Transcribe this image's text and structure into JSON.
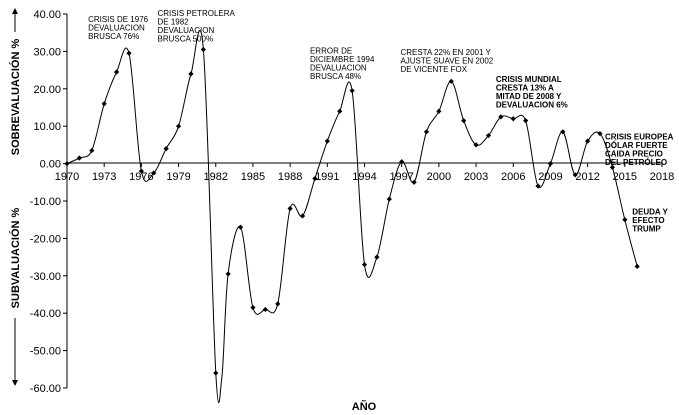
{
  "chart_data": {
    "type": "line",
    "xlabel": "AÑO",
    "ylabel_top": "SOBREVALUACIÓN %",
    "ylabel_bottom": "SUBVALUACIÓN %",
    "xlim": [
      1970,
      2018
    ],
    "ylim": [
      -60,
      40
    ],
    "x_ticks": [
      "1970",
      "1973",
      "1976",
      "1979",
      "1982",
      "1985",
      "1988",
      "1991",
      "1994",
      "1997",
      "2000",
      "2003",
      "2006",
      "2009",
      "2012",
      "2015",
      "2018"
    ],
    "y_ticks": [
      "40.00",
      "30.00",
      "20.00",
      "10.00",
      "0.00",
      "-10.00",
      "-20.00",
      "-30.00",
      "-40.00",
      "-50.00",
      "-60.00"
    ],
    "grid": false,
    "legend": "none",
    "series": [
      {
        "x": [
          1970,
          1971,
          1972,
          1973,
          1974,
          1975,
          1976,
          1977,
          1978,
          1979,
          1980,
          1981,
          1982,
          1982.5,
          1983,
          1984,
          1985,
          1986,
          1987,
          1988,
          1989,
          1990,
          1991,
          1992,
          1993,
          1994,
          1995,
          1996,
          1997,
          1998,
          1999,
          2000,
          2001,
          2002,
          2003,
          2004,
          2005,
          2006,
          2007,
          2008,
          2009,
          2010,
          2011,
          2012,
          2013,
          2014,
          2015,
          2016
        ],
        "y": [
          0,
          1.5,
          3.5,
          16,
          24.5,
          29.5,
          -2,
          -2.5,
          4,
          10,
          24,
          30.5,
          -56,
          -57,
          -29.5,
          -17,
          -38.5,
          -39,
          -37.5,
          -12,
          -14,
          -4,
          6,
          14,
          19.5,
          -27,
          -25,
          -9.5,
          0.5,
          -5,
          8.5,
          14,
          22,
          11.5,
          5,
          7.5,
          12.5,
          12,
          11.5,
          -6,
          0,
          8.5,
          -3,
          6,
          8,
          -1,
          -15,
          -27.5
        ]
      }
    ],
    "annotations": [
      {
        "lines": [
          "CRISIS DE 1976",
          "DEVALUACION",
          "BRUSCA 76%"
        ],
        "bold": false,
        "x": 1971.7,
        "y": 37.8
      },
      {
        "lines": [
          "CRISIS PETROLERA",
          "DE 1982",
          "DEVALUACION",
          "BRUSCA 500%"
        ],
        "bold": false,
        "x": 1977.3,
        "y": 39.4
      },
      {
        "lines": [
          "ERROR DE",
          "DICIEMBRE 1994",
          "DEVALUACION",
          "BRUSCA 48%"
        ],
        "bold": false,
        "x": 1989.6,
        "y": 29.4
      },
      {
        "lines": [
          "CRESTA 22% EN 2001 Y",
          "AJUSTE SUAVE EN 2002",
          "DE VICENTE  FOX"
        ],
        "bold": false,
        "x": 1996.9,
        "y": 29.0
      },
      {
        "lines": [
          "CRISIS MUNDIAL",
          "CRESTA 13%  A",
          "MITAD DE 2008  Y",
          "DEVALUACION 6%"
        ],
        "bold": true,
        "x": 2004.6,
        "y": 21.8
      },
      {
        "lines": [
          "CRISIS EUROPEA",
          "DÓLAR FUERTE",
          "CAIDA PRECIO",
          "DEL PETRÓLEO"
        ],
        "bold": true,
        "x": 2013.4,
        "y": 6.4
      },
      {
        "lines": [
          "DEUDA Y",
          "EFECTO",
          "TRUMP"
        ],
        "bold": true,
        "x": 2015.6,
        "y": -13.6
      }
    ]
  }
}
